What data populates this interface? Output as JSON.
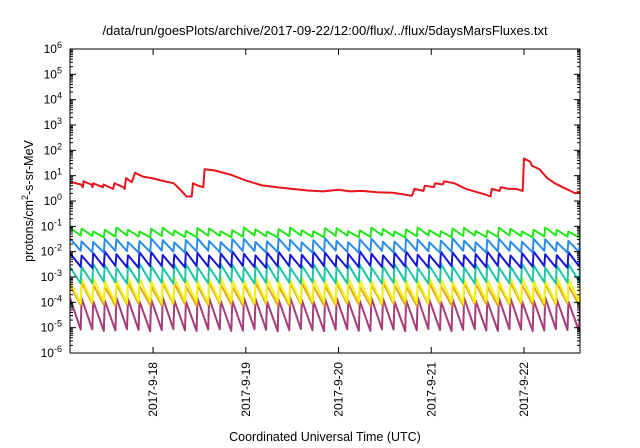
{
  "chart_data": {
    "type": "line",
    "title": "/data/run/goesPlots/archive/2017-09-22/12:00/flux/../flux/5daysMarsFluxes.txt",
    "xlabel": "Coordinated Universal Time (UTC)",
    "ylabel_base": "protons/cm",
    "ylabel_sup": "2",
    "ylabel_tail": "-s-sr-MeV",
    "yscale": "log",
    "ylim": [
      1e-06,
      1000000.0
    ],
    "xlim": [
      "2017-09-17 02:30",
      "2017-09-22 14:30"
    ],
    "grid": false,
    "legend": "none",
    "y_ticks": [
      {
        "base": "10",
        "exp": "-6",
        "value": 1e-06
      },
      {
        "base": "10",
        "exp": "-5",
        "value": 1e-05
      },
      {
        "base": "10",
        "exp": "-4",
        "value": 0.0001
      },
      {
        "base": "10",
        "exp": "-3",
        "value": 0.001
      },
      {
        "base": "10",
        "exp": "-2",
        "value": 0.01
      },
      {
        "base": "10",
        "exp": "-1",
        "value": 0.1
      },
      {
        "base": "10",
        "exp": "0",
        "value": 1
      },
      {
        "base": "10",
        "exp": "1",
        "value": 10
      },
      {
        "base": "10",
        "exp": "2",
        "value": 100
      },
      {
        "base": "10",
        "exp": "3",
        "value": 1000
      },
      {
        "base": "10",
        "exp": "4",
        "value": 10000
      },
      {
        "base": "10",
        "exp": "5",
        "value": 100000
      },
      {
        "base": "10",
        "exp": "6",
        "value": 1000000
      }
    ],
    "x_ticks": [
      {
        "label": "2017-9-18",
        "value": "2017-09-18 00:00"
      },
      {
        "label": "2017-9-19",
        "value": "2017-09-19 00:00"
      },
      {
        "label": "2017-9-20",
        "value": "2017-09-20 00:00"
      },
      {
        "label": "2017-9-21",
        "value": "2017-09-21 00:00"
      },
      {
        "label": "2017-9-22",
        "value": "2017-09-22 00:00"
      }
    ],
    "series": [
      {
        "color": "#e8141b",
        "points": [
          [
            "2017-09-17 02:30",
            6
          ],
          [
            "2017-09-17 03:00",
            5.5
          ],
          [
            "2017-09-17 05:20",
            4.5
          ],
          [
            "2017-09-17 05:50",
            3.5
          ],
          [
            "2017-09-17 06:00",
            6
          ],
          [
            "2017-09-17 08:00",
            4.5
          ],
          [
            "2017-09-17 08:20",
            3.5
          ],
          [
            "2017-09-17 08:30",
            5
          ],
          [
            "2017-09-17 11:00",
            3.5
          ],
          [
            "2017-09-17 11:10",
            4.5
          ],
          [
            "2017-09-17 13:40",
            3
          ],
          [
            "2017-09-17 14:00",
            5
          ],
          [
            "2017-09-17 16:20",
            3.5
          ],
          [
            "2017-09-17 16:40",
            3
          ],
          [
            "2017-09-17 17:00",
            8
          ],
          [
            "2017-09-17 18:30",
            5.5
          ],
          [
            "2017-09-17 19:20",
            13
          ],
          [
            "2017-09-17 21:30",
            9
          ],
          [
            "2017-09-17 23:40",
            8
          ],
          [
            "2017-09-18 02:00",
            6.5
          ],
          [
            "2017-09-18 05:20",
            5
          ],
          [
            "2017-09-18 06:00",
            4
          ],
          [
            "2017-09-18 07:20",
            2.5
          ],
          [
            "2017-09-18 08:40",
            1.5
          ],
          [
            "2017-09-18 10:00",
            1.5
          ],
          [
            "2017-09-18 10:20",
            5
          ],
          [
            "2017-09-18 11:40",
            4
          ],
          [
            "2017-09-18 13:00",
            3.5
          ],
          [
            "2017-09-18 13:20",
            18
          ],
          [
            "2017-09-18 16:00",
            16
          ],
          [
            "2017-09-18 20:00",
            11
          ],
          [
            "2017-09-19 00:00",
            6.5
          ],
          [
            "2017-09-19 04:00",
            4.2
          ],
          [
            "2017-09-19 08:00",
            3.5
          ],
          [
            "2017-09-19 12:00",
            3
          ],
          [
            "2017-09-19 16:00",
            2.6
          ],
          [
            "2017-09-19 20:00",
            2.4
          ],
          [
            "2017-09-20 00:00",
            2.8
          ],
          [
            "2017-09-20 03:00",
            2.4
          ],
          [
            "2017-09-20 06:00",
            2.5
          ],
          [
            "2017-09-20 10:00",
            2.2
          ],
          [
            "2017-09-20 14:00",
            2.1
          ],
          [
            "2017-09-20 17:00",
            1.8
          ],
          [
            "2017-09-20 19:00",
            1.6
          ],
          [
            "2017-09-20 19:40",
            3
          ],
          [
            "2017-09-20 22:00",
            2.5
          ],
          [
            "2017-09-20 22:20",
            4
          ],
          [
            "2017-09-21 00:40",
            3.5
          ],
          [
            "2017-09-21 01:00",
            5
          ],
          [
            "2017-09-21 03:00",
            4.5
          ],
          [
            "2017-09-21 03:20",
            6
          ],
          [
            "2017-09-21 06:00",
            5
          ],
          [
            "2017-09-21 09:00",
            3
          ],
          [
            "2017-09-21 12:00",
            2.2
          ],
          [
            "2017-09-21 14:00",
            1.8
          ],
          [
            "2017-09-21 15:20",
            1.5
          ],
          [
            "2017-09-21 15:40",
            3
          ],
          [
            "2017-09-21 17:40",
            2.5
          ],
          [
            "2017-09-21 18:00",
            3.5
          ],
          [
            "2017-09-21 20:00",
            3
          ],
          [
            "2017-09-21 22:00",
            3
          ],
          [
            "2017-09-21 23:40",
            2.5
          ],
          [
            "2017-09-22 00:00",
            48
          ],
          [
            "2017-09-22 01:40",
            35
          ],
          [
            "2017-09-22 02:00",
            25
          ],
          [
            "2017-09-22 04:00",
            18
          ],
          [
            "2017-09-22 06:00",
            8
          ],
          [
            "2017-09-22 08:00",
            5
          ],
          [
            "2017-09-22 10:00",
            3.5
          ],
          [
            "2017-09-22 12:00",
            2.5
          ],
          [
            "2017-09-22 13:20",
            2
          ],
          [
            "2017-09-22 14:00",
            2.3
          ],
          [
            "2017-09-22 14:30",
            2.1
          ]
        ]
      },
      {
        "color": "#22e61a",
        "pattern": "sawtooth",
        "period_hours": 3,
        "low": 0.04,
        "high": 0.075
      },
      {
        "color": "#2a8ce8",
        "pattern": "sawtooth",
        "period_hours": 3,
        "low": 0.01,
        "high": 0.028
      },
      {
        "color": "#1616d6",
        "pattern": "sawtooth",
        "period_hours": 3,
        "low": 0.0025,
        "high": 0.0085
      },
      {
        "color": "#1ec4a6",
        "pattern": "sawtooth",
        "period_hours": 3,
        "low": 0.0006,
        "high": 0.0028
      },
      {
        "color": "#f2f216",
        "pattern": "sawtooth",
        "period_hours": 3,
        "low": 0.0001,
        "high": 0.0008
      },
      {
        "color": "#e6a520",
        "pattern": "sawtooth",
        "period_hours": 3,
        "low": 8e-05,
        "high": 0.0005
      },
      {
        "color": "#a63c78",
        "pattern": "sawtooth",
        "period_hours": 3,
        "low": 8e-06,
        "high": 0.00013
      }
    ]
  }
}
